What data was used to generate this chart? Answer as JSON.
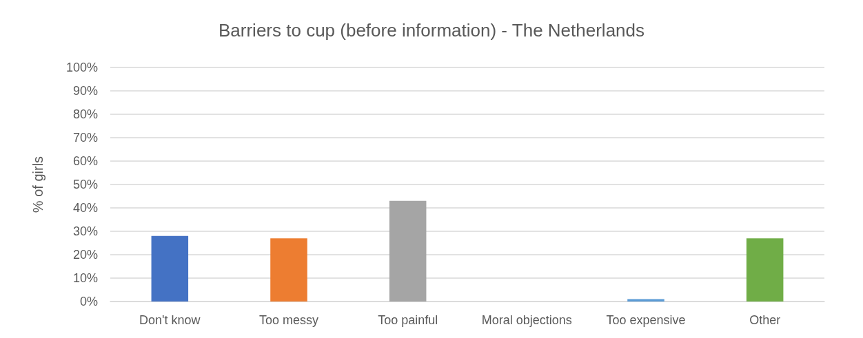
{
  "chart_data": {
    "type": "bar",
    "title": "Barriers to cup (before information) - The Netherlands",
    "ylabel": "% of girls",
    "categories": [
      "Don't know",
      "Too messy",
      "Too painful",
      "Moral objections",
      "Too expensive",
      "Other"
    ],
    "values": [
      28,
      27,
      43,
      0,
      1,
      27
    ],
    "colors": [
      "#4472c4",
      "#ed7d31",
      "#a5a5a5",
      "#ffc000",
      "#5b9bd5",
      "#70ad47"
    ],
    "ylim": [
      0,
      100
    ],
    "yticks": [
      {
        "value": 0,
        "label": "0%"
      },
      {
        "value": 10,
        "label": "10%"
      },
      {
        "value": 20,
        "label": "20%"
      },
      {
        "value": 30,
        "label": "30%"
      },
      {
        "value": 40,
        "label": "40%"
      },
      {
        "value": 50,
        "label": "50%"
      },
      {
        "value": 60,
        "label": "60%"
      },
      {
        "value": 70,
        "label": "70%"
      },
      {
        "value": 80,
        "label": "80%"
      },
      {
        "value": 90,
        "label": "90%"
      },
      {
        "value": 100,
        "label": "100%"
      }
    ],
    "grid": true
  }
}
